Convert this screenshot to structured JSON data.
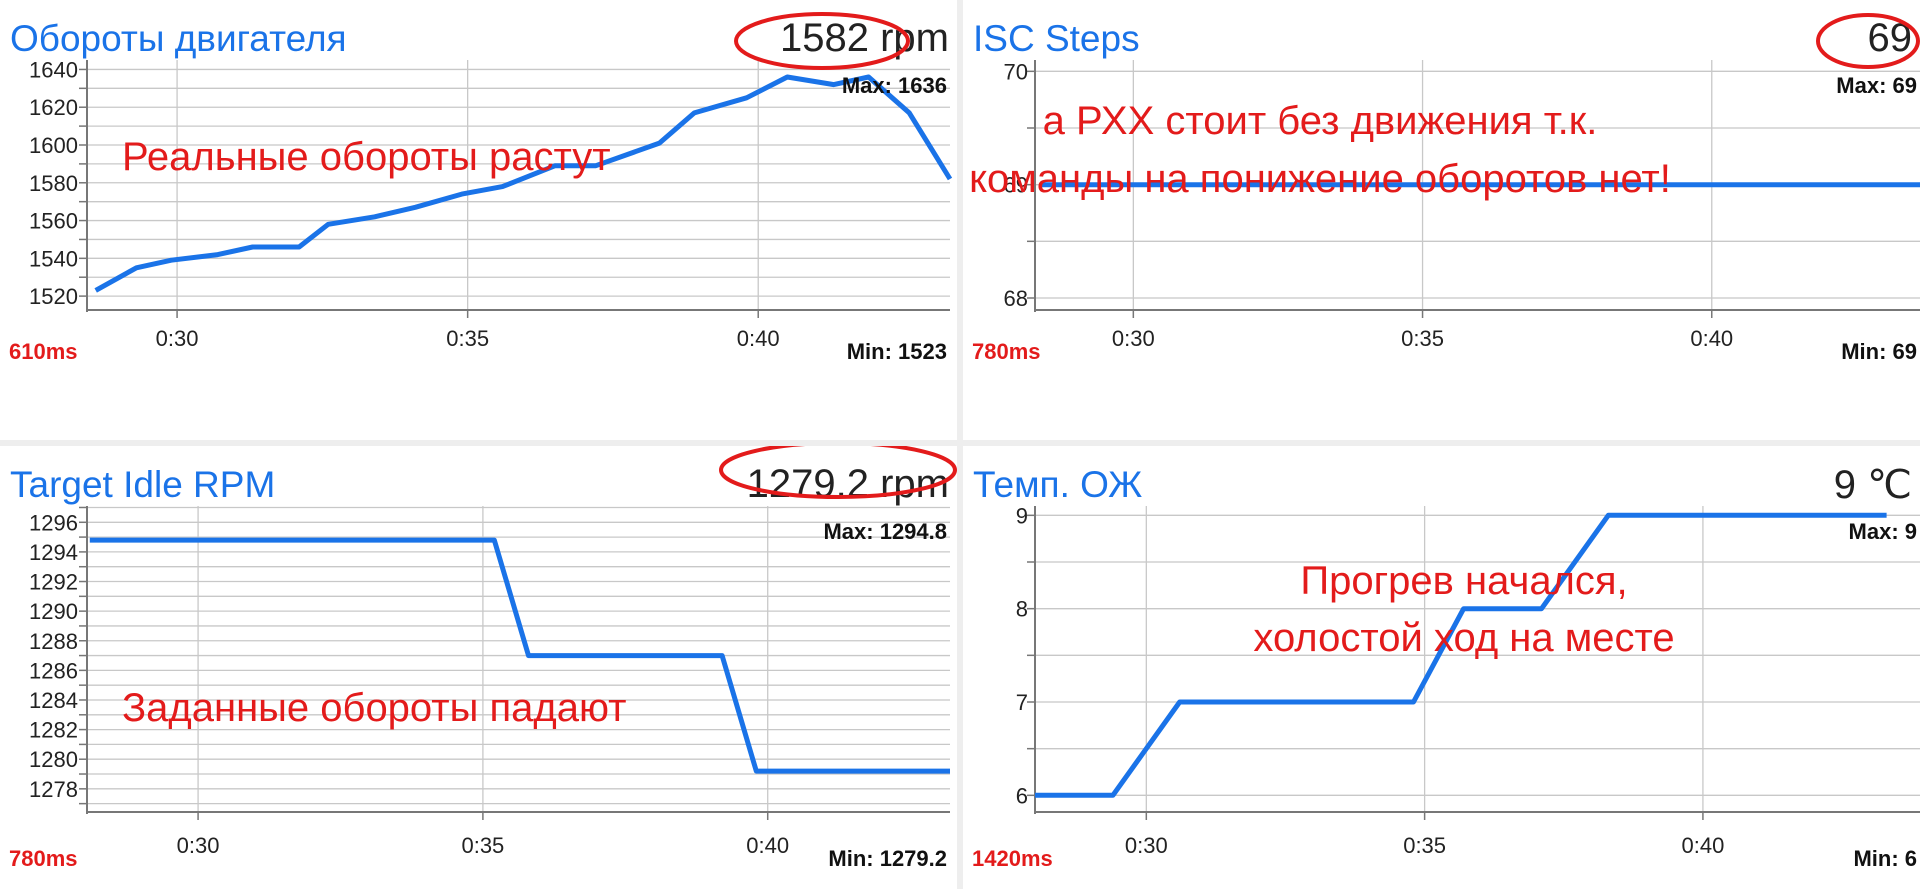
{
  "colors": {
    "line": "#1a73e8",
    "annotation": "#e31b1b",
    "grid": "#c8c8c8",
    "title": "#1a73e8",
    "oval": "#e31b1b"
  },
  "panels": [
    {
      "title": "Обороты двигателя",
      "value": "1582  rpm",
      "value_circled": true,
      "interval": "610ms",
      "max_label": "Max: 1636",
      "min_label": "Min: 1523",
      "annotation": [
        "Реальные обороты растут"
      ]
    },
    {
      "title": "ISC Steps",
      "value": "69",
      "value_circled": true,
      "interval": "780ms",
      "max_label": "Max: 69",
      "min_label": "Min: 69",
      "annotation": [
        "а РХХ стоит без движения т.к.",
        "команды на понижение оборотов нет!"
      ]
    },
    {
      "title": "Target Idle RPM",
      "value": "1279.2  rpm",
      "value_circled": true,
      "interval": "780ms",
      "max_label": "Max: 1294.8",
      "min_label": "Min: 1279.2",
      "annotation": [
        "Заданные обороты падают"
      ]
    },
    {
      "title": "Темп. ОЖ",
      "value": "9  ℃",
      "value_circled": false,
      "interval": "1420ms",
      "max_label": "Max: 9",
      "min_label": "Min: 6",
      "annotation": [
        "Прогрев начался,",
        "холостой ход на месте"
      ]
    }
  ],
  "chart_data": [
    {
      "type": "line",
      "title": "Обороты двигателя",
      "unit": "rpm",
      "xlabel": "",
      "ylabel": "",
      "x_ticks": [
        "0:30",
        "0:35",
        "0:40"
      ],
      "x_tick_values": [
        30,
        35,
        40
      ],
      "xlim": [
        28.45,
        43.3
      ],
      "ylim": [
        1510,
        1645
      ],
      "y_ticks": [
        1520,
        1540,
        1560,
        1580,
        1600,
        1620,
        1640
      ],
      "minor_y_step": 10,
      "grid": true,
      "series": [
        {
          "x": [
            28.6,
            29.3,
            29.9,
            30.7,
            31.3,
            32.1,
            32.6,
            33.4,
            34.1,
            34.9,
            35.6,
            36.5,
            37.2,
            38.3,
            38.9,
            39.8,
            40.5,
            41.3,
            41.9,
            42.6,
            43.3
          ],
          "y": [
            1523,
            1535,
            1539,
            1542,
            1546,
            1546,
            1558,
            1562,
            1567,
            1574,
            1578,
            1589,
            1589,
            1601,
            1617,
            1625,
            1636,
            1632,
            1636,
            1617,
            1582
          ]
        }
      ]
    },
    {
      "type": "line",
      "title": "ISC Steps",
      "xlabel": "",
      "ylabel": "",
      "x_ticks": [
        "0:30",
        "0:35",
        "0:40"
      ],
      "x_tick_values": [
        30,
        35,
        40
      ],
      "xlim": [
        28.3,
        43.6
      ],
      "ylim": [
        67.85,
        70.1
      ],
      "y_ticks": [
        68,
        69,
        70
      ],
      "minor_y_step": 0.5,
      "grid": true,
      "series": [
        {
          "x": [
            28.4,
            43.6
          ],
          "y": [
            69,
            69
          ]
        }
      ]
    },
    {
      "type": "line",
      "title": "Target Idle RPM",
      "unit": "rpm",
      "xlabel": "",
      "ylabel": "",
      "x_ticks": [
        "0:30",
        "0:35",
        "0:40"
      ],
      "x_tick_values": [
        30,
        35,
        40
      ],
      "xlim": [
        28.05,
        43.2
      ],
      "ylim": [
        1276.3,
        1297.1
      ],
      "y_ticks": [
        1278,
        1280,
        1282,
        1284,
        1286,
        1288,
        1290,
        1292,
        1294,
        1296
      ],
      "minor_y_step": 1,
      "grid": true,
      "series": [
        {
          "x": [
            28.1,
            35.2,
            35.8,
            39.2,
            39.8,
            43.2
          ],
          "y": [
            1294.8,
            1294.8,
            1287,
            1287,
            1279.2,
            1279.2
          ]
        }
      ]
    },
    {
      "type": "line",
      "title": "Темп. ОЖ",
      "unit": "℃",
      "xlabel": "",
      "ylabel": "",
      "x_ticks": [
        "0:30",
        "0:35",
        "0:40"
      ],
      "x_tick_values": [
        30,
        35,
        40
      ],
      "xlim": [
        28.0,
        43.9
      ],
      "ylim": [
        5.8,
        9.1
      ],
      "y_ticks": [
        6,
        7,
        8,
        9
      ],
      "minor_y_step": 0.5,
      "grid": true,
      "series": [
        {
          "x": [
            28.0,
            29.4,
            30.6,
            34.8,
            35.7,
            37.1,
            38.3,
            43.3
          ],
          "y": [
            6,
            6,
            7,
            7,
            8,
            8,
            9,
            9
          ]
        }
      ]
    }
  ]
}
